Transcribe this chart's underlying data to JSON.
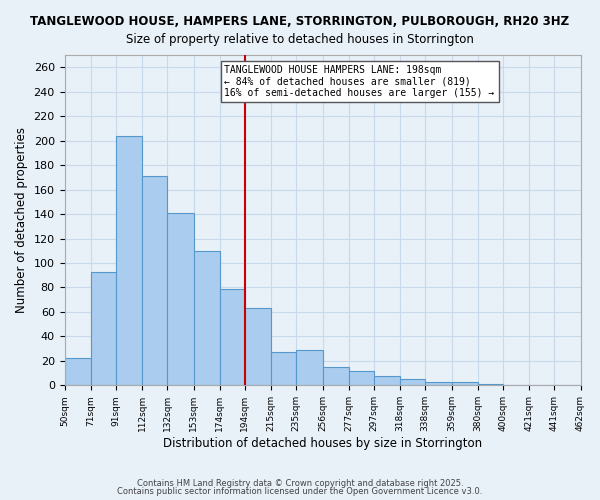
{
  "title": "TANGLEWOOD HOUSE, HAMPERS LANE, STORRINGTON, PULBOROUGH, RH20 3HZ",
  "subtitle": "Size of property relative to detached houses in Storrington",
  "xlabel": "Distribution of detached houses by size in Storrington",
  "ylabel": "Number of detached properties",
  "bar_values": [
    22,
    93,
    204,
    171,
    141,
    110,
    79,
    63,
    27,
    29,
    15,
    12,
    8,
    5,
    3,
    3,
    1,
    0,
    0,
    0
  ],
  "bin_edges": [
    50,
    71,
    91,
    112,
    132,
    153,
    174,
    194,
    215,
    235,
    256,
    277,
    297,
    318,
    338,
    359,
    380,
    400,
    421,
    441,
    462
  ],
  "bin_labels": [
    "50sqm",
    "71sqm",
    "91sqm",
    "112sqm",
    "132sqm",
    "153sqm",
    "174sqm",
    "194sqm",
    "215sqm",
    "235sqm",
    "256sqm",
    "277sqm",
    "297sqm",
    "318sqm",
    "338sqm",
    "359sqm",
    "380sqm",
    "400sqm",
    "421sqm",
    "441sqm",
    "462sqm"
  ],
  "bar_color": "#aaccee",
  "bar_edge_color": "#5599cc",
  "vline_x": 194,
  "vline_color": "#cc0000",
  "annotation_title": "TANGLEWOOD HOUSE HAMPERS LANE: 198sqm",
  "annotation_line1": "← 84% of detached houses are smaller (819)",
  "annotation_line2": "16% of semi-detached houses are larger (155) →",
  "annotation_box_color": "#ffffff",
  "annotation_box_edge": "#555555",
  "ylim": [
    0,
    270
  ],
  "yticks": [
    0,
    20,
    40,
    60,
    80,
    100,
    120,
    140,
    160,
    180,
    200,
    220,
    240,
    260
  ],
  "grid_color": "#c8daea",
  "bg_color": "#e8f0f8",
  "footer1": "Contains HM Land Registry data © Crown copyright and database right 2025.",
  "footer2": "Contains public sector information licensed under the Open Government Licence v3.0."
}
